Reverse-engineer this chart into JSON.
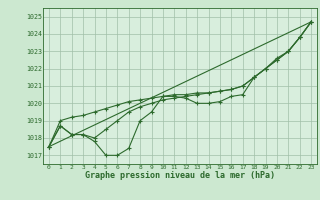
{
  "background_color": "#cce8d0",
  "plot_bg_color": "#d8eedd",
  "grid_color": "#a0c0a8",
  "line_color": "#2d6a2d",
  "x_ticks": [
    0,
    1,
    2,
    3,
    4,
    5,
    6,
    7,
    8,
    9,
    10,
    11,
    12,
    13,
    14,
    15,
    16,
    17,
    18,
    19,
    20,
    21,
    22,
    23
  ],
  "y_ticks": [
    1017,
    1018,
    1019,
    1020,
    1021,
    1022,
    1023,
    1024,
    1025
  ],
  "ylim": [
    1016.5,
    1025.5
  ],
  "xlim": [
    -0.5,
    23.5
  ],
  "xlabel": "Graphe pression niveau de la mer (hPa)",
  "series1": [
    1017.5,
    1018.7,
    1018.2,
    1018.2,
    1017.8,
    1017.0,
    1017.0,
    1017.4,
    1019.0,
    1019.5,
    1020.4,
    1020.4,
    1020.3,
    1020.0,
    1020.0,
    1020.1,
    1020.4,
    1020.5,
    1021.5,
    1022.0,
    1022.6,
    1023.0,
    1023.8,
    1024.7
  ],
  "series2": [
    1017.5,
    1018.7,
    1018.2,
    1018.2,
    1018.0,
    1018.5,
    1019.0,
    1019.5,
    1019.8,
    1020.0,
    1020.2,
    1020.3,
    1020.4,
    1020.5,
    1020.6,
    1020.7,
    1020.8,
    1021.0,
    1021.5,
    1022.0,
    1022.5,
    1023.0,
    1023.8,
    1024.7
  ],
  "series3": [
    1017.5,
    1019.0,
    1019.2,
    1019.3,
    1019.5,
    1019.7,
    1019.9,
    1020.1,
    1020.2,
    1020.3,
    1020.4,
    1020.5,
    1020.5,
    1020.6,
    1020.6,
    1020.7,
    1020.8,
    1021.0,
    1021.5,
    1022.0,
    1022.5,
    1023.0,
    1023.8,
    1024.7
  ],
  "straight_line": [
    [
      0,
      1017.5
    ],
    [
      23,
      1024.7
    ]
  ]
}
